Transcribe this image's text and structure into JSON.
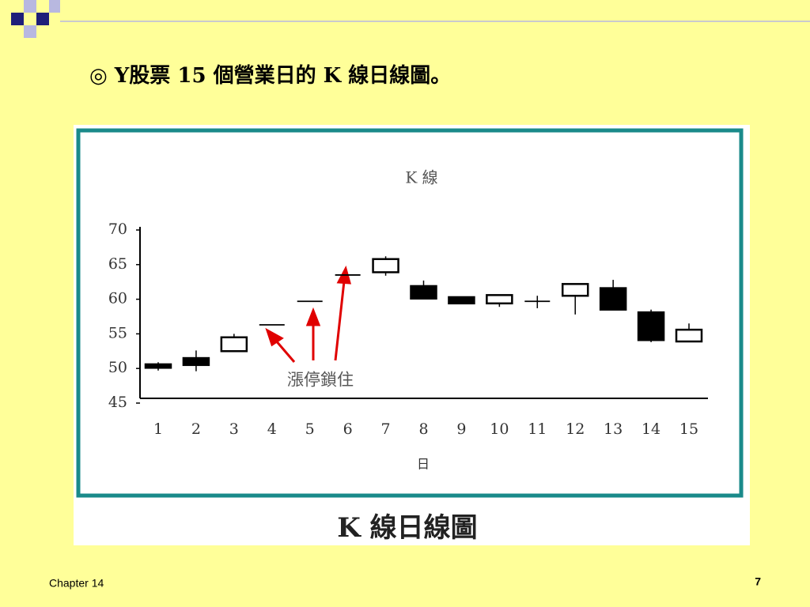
{
  "slide": {
    "title": "◎ Y股票 15 個營業日的 K 線日線圖。",
    "caption": "K 線日線圖",
    "footer": "Chapter 14",
    "page": "7"
  },
  "chart_data": {
    "type": "candlestick",
    "title": "K 線",
    "x_label": "日",
    "annotations": [
      "漲停鎖住"
    ],
    "categories": [
      "1",
      "2",
      "3",
      "4",
      "5",
      "6",
      "7",
      "8",
      "9",
      "10",
      "11",
      "12",
      "13",
      "14",
      "15"
    ],
    "open": [
      50.6,
      51.5,
      52.5,
      56.3,
      59.7,
      63.5,
      63.9,
      61.9,
      60.3,
      59.4,
      59.7,
      60.5,
      61.6,
      58.1,
      53.9
    ],
    "high": [
      50.9,
      52.6,
      55.0,
      56.3,
      59.7,
      63.5,
      66.2,
      62.7,
      60.3,
      60.6,
      60.5,
      62.2,
      62.8,
      58.5,
      56.5
    ],
    "low": [
      49.7,
      49.6,
      52.5,
      56.3,
      59.7,
      63.5,
      63.4,
      60.1,
      59.4,
      58.9,
      58.7,
      57.8,
      58.5,
      53.8,
      53.9
    ],
    "close": [
      50.1,
      50.5,
      54.5,
      56.3,
      59.7,
      63.5,
      65.8,
      60.1,
      59.4,
      60.6,
      59.7,
      62.2,
      58.5,
      54.1,
      55.6
    ],
    "up_color": "#ffffff",
    "down_color": "#000000",
    "ylim": [
      45,
      70
    ],
    "yticks": [
      45,
      50,
      55,
      60,
      65,
      70
    ],
    "grid": false
  }
}
